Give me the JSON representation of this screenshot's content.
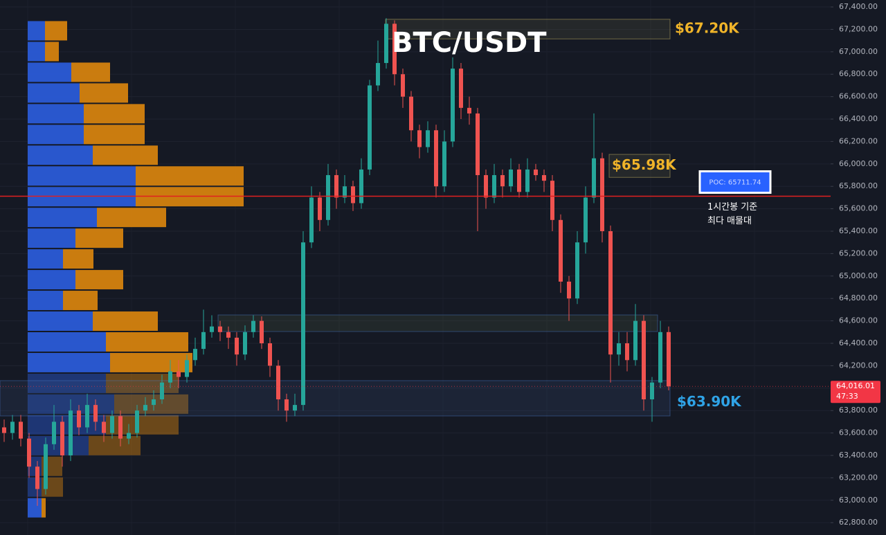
{
  "chart_data": {
    "type": "candlestick",
    "title": "BTC/USDT",
    "ylim": [
      62690,
      67462
    ],
    "grid": true,
    "up_color": "#26a69a",
    "down_color": "#ef5350",
    "yticks": [
      {
        "value": 67400,
        "label": "67,400.00"
      },
      {
        "value": 67200,
        "label": "67,200.00"
      },
      {
        "value": 67000,
        "label": "67,000.00"
      },
      {
        "value": 66800,
        "label": "66,800.00"
      },
      {
        "value": 66600,
        "label": "66,600.00"
      },
      {
        "value": 66400,
        "label": "66,400.00"
      },
      {
        "value": 66200,
        "label": "66,200.00"
      },
      {
        "value": 66000,
        "label": "66,000.00"
      },
      {
        "value": 65800,
        "label": "65,800.00"
      },
      {
        "value": 65600,
        "label": "65,600.00"
      },
      {
        "value": 65400,
        "label": "65,400.00"
      },
      {
        "value": 65200,
        "label": "65,200.00"
      },
      {
        "value": 65000,
        "label": "65,000.00"
      },
      {
        "value": 64800,
        "label": "64,800.00"
      },
      {
        "value": 64600,
        "label": "64,600.00"
      },
      {
        "value": 64400,
        "label": "64,400.00"
      },
      {
        "value": 64200,
        "label": "64,200.00"
      },
      {
        "value": 64000,
        "label": "64,000.00"
      },
      {
        "value": 63800,
        "label": "63,800.00"
      },
      {
        "value": 63600,
        "label": "63,600.00"
      },
      {
        "value": 63400,
        "label": "63,400.00"
      },
      {
        "value": 63200,
        "label": "63,200.00"
      },
      {
        "value": 63000,
        "label": "63,000.00"
      },
      {
        "value": 62800,
        "label": "62,800.00"
      }
    ],
    "open": [
      63650,
      63600,
      63700,
      63550,
      63300,
      63100,
      63500,
      63700,
      63400,
      63800,
      63650,
      63850,
      63700,
      63600,
      63750,
      63550,
      63600,
      63800,
      63850,
      63900,
      64050,
      64150,
      64100,
      64250,
      64350,
      64500,
      64550,
      64500,
      64450,
      64300,
      64500,
      64600,
      64400,
      64200,
      63900,
      63800,
      63850,
      65300,
      65700,
      65500,
      65900,
      65700,
      65800,
      65650,
      65950,
      66700,
      66900,
      67250,
      66800,
      66600,
      66300,
      66150,
      66300,
      65800,
      66200,
      66850,
      66500,
      66450,
      65900,
      65700,
      65900,
      65800,
      65950,
      65750,
      65950,
      65900,
      65850,
      65500,
      64950,
      64800,
      65300,
      65700,
      66050,
      65400,
      64300,
      64400,
      64250,
      64600,
      63900,
      64050,
      64500
    ],
    "high": [
      63720,
      63760,
      63760,
      63600,
      63350,
      63560,
      63850,
      63750,
      63900,
      63850,
      63950,
      63900,
      63760,
      63800,
      63800,
      63680,
      63850,
      63920,
      63980,
      64120,
      64250,
      64250,
      64300,
      64450,
      64700,
      64650,
      64600,
      64550,
      64500,
      64560,
      64650,
      64640,
      64450,
      64250,
      63950,
      63950,
      65400,
      65800,
      65750,
      66000,
      65950,
      65900,
      65850,
      66050,
      66750,
      67100,
      67300,
      67280,
      66850,
      66650,
      66350,
      66380,
      66350,
      66300,
      66950,
      66900,
      66600,
      66500,
      65950,
      66000,
      65950,
      66050,
      66000,
      66050,
      66000,
      65950,
      65900,
      65550,
      65000,
      65400,
      65800,
      66450,
      66100,
      65450,
      64500,
      64500,
      64750,
      64650,
      64100,
      64600,
      64550
    ],
    "low": [
      63520,
      63540,
      63480,
      63200,
      62950,
      63050,
      63450,
      63300,
      63350,
      63580,
      63600,
      63620,
      63520,
      63550,
      63480,
      63500,
      63560,
      63750,
      63800,
      63860,
      64000,
      64000,
      64050,
      64200,
      64300,
      64450,
      64420,
      64350,
      64200,
      64250,
      64450,
      64350,
      64100,
      63800,
      63700,
      63750,
      63800,
      65250,
      65400,
      65450,
      65600,
      65650,
      65580,
      65600,
      65900,
      66650,
      66850,
      66700,
      66500,
      66200,
      66050,
      66100,
      65700,
      65750,
      66150,
      66400,
      66350,
      65400,
      65600,
      65650,
      65700,
      65750,
      65700,
      65700,
      65850,
      65750,
      65400,
      64850,
      64600,
      64750,
      65200,
      65650,
      65300,
      64050,
      64200,
      64150,
      64200,
      63800,
      63700,
      64000,
      63980
    ],
    "close": [
      63600,
      63700,
      63550,
      63300,
      63100,
      63500,
      63700,
      63400,
      63800,
      63650,
      63850,
      63700,
      63600,
      63750,
      63550,
      63600,
      63800,
      63850,
      63900,
      64050,
      64150,
      64100,
      64250,
      64350,
      64500,
      64550,
      64500,
      64450,
      64300,
      64500,
      64600,
      64400,
      64200,
      63900,
      63800,
      63850,
      65300,
      65700,
      65500,
      65900,
      65700,
      65800,
      65650,
      65950,
      66700,
      66900,
      67250,
      66800,
      66600,
      66300,
      66150,
      66300,
      65800,
      66200,
      66850,
      66500,
      66450,
      65900,
      65700,
      65900,
      65800,
      65950,
      65750,
      65950,
      65900,
      65850,
      65500,
      64950,
      64800,
      65300,
      65700,
      66050,
      65400,
      64300,
      64400,
      64250,
      64600,
      63900,
      64050,
      64500,
      64016.01
    ],
    "volume_profile": {
      "bins": [
        67280,
        67095,
        66910,
        66725,
        66540,
        66355,
        66170,
        65985,
        65800,
        65615,
        65430,
        65245,
        65060,
        64875,
        64690,
        64505,
        64320,
        64135,
        63950,
        63765,
        63580,
        63395,
        63210,
        63025,
        62840
      ],
      "buy": [
        25,
        25,
        63,
        75,
        81,
        81,
        94,
        156,
        156,
        100,
        69,
        51,
        69,
        51,
        94,
        113,
        119,
        113,
        125,
        113,
        88,
        20,
        20,
        20
      ],
      "sell": [
        32,
        20,
        56,
        70,
        88,
        88,
        94,
        156,
        156,
        100,
        69,
        44,
        69,
        50,
        94,
        119,
        119,
        105,
        107,
        105,
        75,
        30,
        31,
        6
      ],
      "buy_color": "#2a5bd7",
      "sell_color": "#d4820f"
    },
    "zones": [
      {
        "low": 67115,
        "high": 67290,
        "label": "$67.20K",
        "color": "#f0b429"
      },
      {
        "low": 65880,
        "high": 66085,
        "label": "$65.98K",
        "color": "#f0b429"
      },
      {
        "low": 64505,
        "high": 64653
      },
      {
        "low": 63752,
        "high": 64067,
        "label": "$63.90K",
        "color": "#2fa3e6"
      }
    ],
    "poc": {
      "value": 65711.74,
      "label": "POC: 65711.74",
      "color": "#e02020",
      "note": [
        "1시간봉 기준",
        "최다 매물대"
      ]
    },
    "last_price": {
      "value": 64016.01,
      "label": "64,016.01",
      "countdown": "47:33",
      "color": "#f23645"
    }
  }
}
